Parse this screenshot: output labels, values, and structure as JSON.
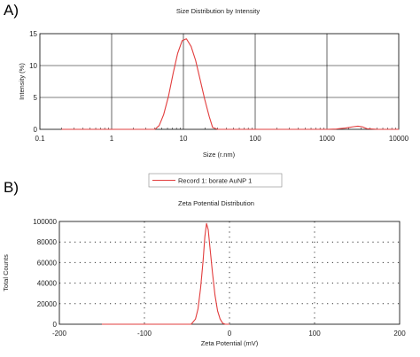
{
  "chart_data": [
    {
      "panel_label": "A)",
      "type": "line",
      "title": "Size Distribution by Intensity",
      "xlabel": "Size (r.nm)",
      "ylabel": "Intensity (%)",
      "xscale": "log",
      "xlim": [
        0.1,
        10000
      ],
      "ylim": [
        0,
        15
      ],
      "xticks": [
        0.1,
        1,
        10,
        100,
        1000,
        10000
      ],
      "xtick_labels": [
        "0.1",
        "1",
        "10",
        "100",
        "1000",
        "10000"
      ],
      "yticks": [
        0,
        5,
        10,
        15
      ],
      "ytick_labels": [
        "0",
        "5",
        "10",
        "15"
      ],
      "grid": "solid",
      "line_color": "#e23c3c",
      "series": [
        {
          "x": [
            0.2,
            1,
            3,
            4.0,
            4.6,
            5.3,
            6.2,
            7.2,
            8.3,
            9.6,
            11.0,
            12.8,
            14.8,
            17.1,
            19.8,
            22.9,
            25.5,
            30,
            100,
            1000,
            1350,
            1800,
            2300,
            2700,
            3100,
            3600,
            5000,
            10000
          ],
          "y": [
            0,
            0,
            0,
            0,
            0.6,
            2.3,
            5.2,
            8.8,
            11.9,
            13.9,
            14.2,
            13.0,
            10.8,
            7.8,
            4.7,
            2.0,
            0.3,
            0,
            0,
            0,
            0.05,
            0.2,
            0.4,
            0.5,
            0.4,
            0.1,
            0,
            0
          ]
        }
      ]
    },
    {
      "panel_label": "B)",
      "type": "line",
      "title": "Zeta Potential Distribution",
      "xlabel": "Zeta Potential (mV)",
      "ylabel": "Total Counts",
      "xlim": [
        -200,
        200
      ],
      "ylim": [
        0,
        100000
      ],
      "xticks": [
        -200,
        -100,
        0,
        100,
        200
      ],
      "xtick_labels": [
        "-200",
        "-100",
        "0",
        "100",
        "200"
      ],
      "yticks": [
        0,
        20000,
        40000,
        60000,
        80000,
        100000
      ],
      "ytick_labels": [
        "0",
        "20000",
        "40000",
        "60000",
        "80000",
        "100000"
      ],
      "grid": "dotted",
      "legend": "Record 1: borate AuNP 1",
      "legend_placement": "top-center",
      "line_color": "#e23c3c",
      "series": [
        {
          "name": "Record 1: borate AuNP 1",
          "x": [
            -150,
            -60,
            -45,
            -40,
            -37,
            -34,
            -31,
            -29,
            -27,
            -25,
            -23,
            -20,
            -17,
            -14,
            -11,
            -8,
            -5,
            0
          ],
          "y": [
            0,
            0,
            0,
            5000,
            15000,
            35000,
            62000,
            85000,
            98000,
            92000,
            75000,
            50000,
            28000,
            13000,
            5000,
            1000,
            0,
            0
          ]
        }
      ]
    }
  ]
}
